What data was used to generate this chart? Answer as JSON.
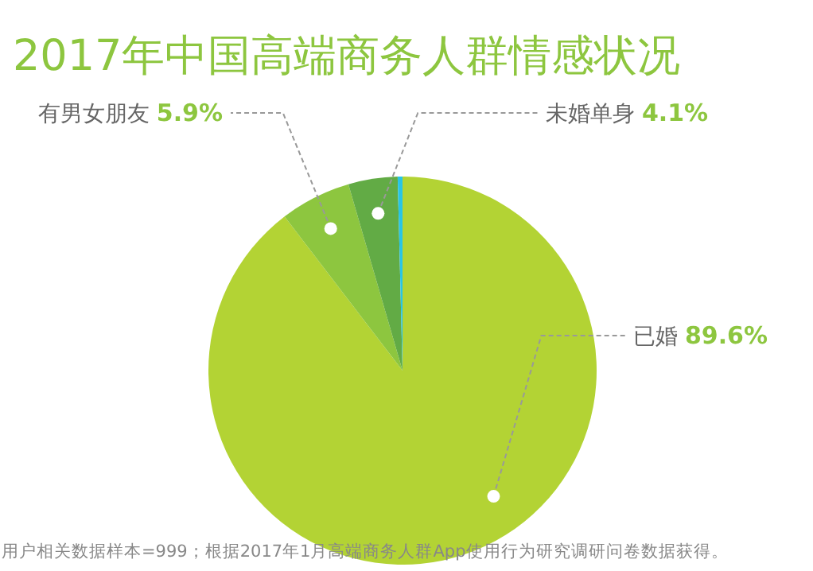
{
  "chart_data": {
    "type": "pie",
    "title": "2017年中国高端商务人群情感状况",
    "categories": [
      "已婚",
      "有男女朋友",
      "未婚单身",
      null
    ],
    "values": [
      89.6,
      5.9,
      4.1,
      0.4
    ],
    "colors": [
      "#b3d334",
      "#8dc63f",
      "#62ab45",
      "#29c5e6"
    ],
    "value_labels": [
      "89.6%",
      "5.9%",
      "4.1%",
      null
    ],
    "annotations": [
      "用户相关数据样本=999；根据2017年1月高端商务人群App使用行为研究调研问卷数据获得。"
    ]
  }
}
